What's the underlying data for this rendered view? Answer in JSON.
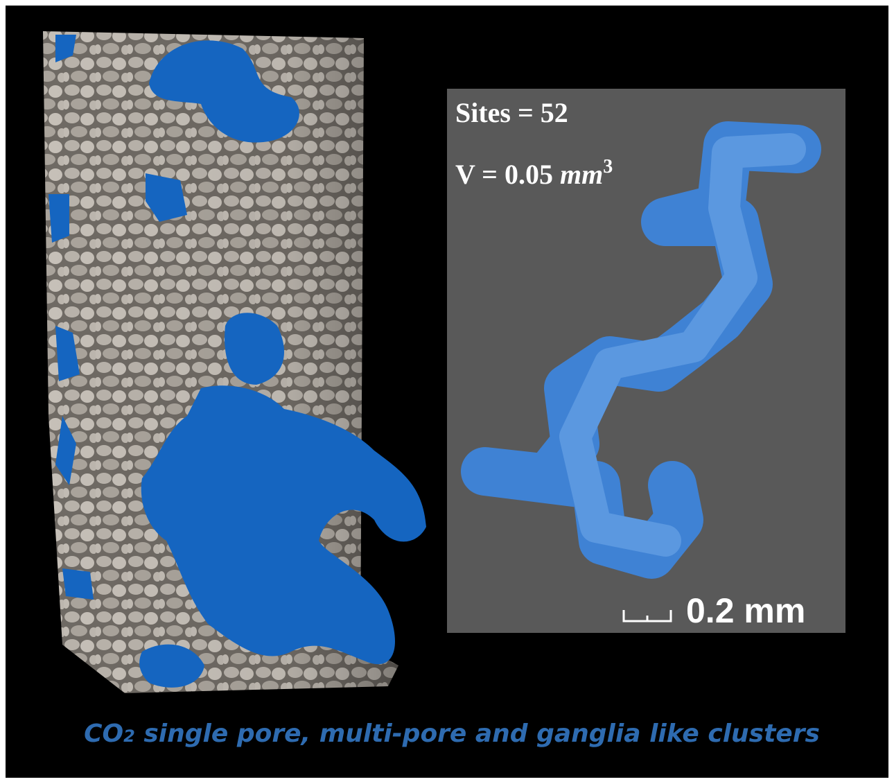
{
  "figure": {
    "inset": {
      "sites": "Sites = 52",
      "volume_prefix": "V = 0.05 ",
      "volume_unit": "mm",
      "volume_exponent": "3",
      "scale_bar": "0.2 mm"
    },
    "caption": {
      "prefix": "CO",
      "subscript": "2",
      "text": " single pore, multi-pore and ganglia like clusters"
    }
  }
}
